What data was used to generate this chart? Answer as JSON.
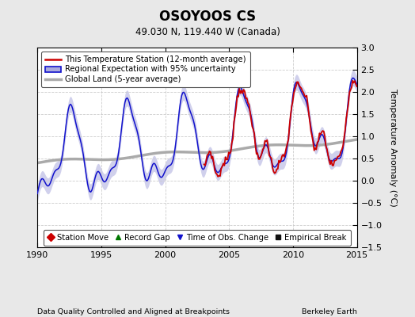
{
  "title": "OSOYOOS CS",
  "subtitle": "49.030 N, 119.440 W (Canada)",
  "xlabel_bottom": "Data Quality Controlled and Aligned at Breakpoints",
  "xlabel_right": "Berkeley Earth",
  "ylabel": "Temperature Anomaly (°C)",
  "xlim": [
    1990,
    2015
  ],
  "ylim": [
    -1.5,
    3.0
  ],
  "yticks": [
    -1.5,
    -1.0,
    -0.5,
    0.0,
    0.5,
    1.0,
    1.5,
    2.0,
    2.5,
    3.0
  ],
  "xticks": [
    1990,
    1995,
    2000,
    2005,
    2010,
    2015
  ],
  "station_color": "#cc0000",
  "regional_color": "#1111cc",
  "regional_fill_color": "#aaaadd",
  "global_color": "#aaaaaa",
  "bg_color": "#e8e8e8",
  "plot_bg": "#ffffff",
  "legend_items": [
    "This Temperature Station (12-month average)",
    "Regional Expectation with 95% uncertainty",
    "Global Land (5-year average)"
  ],
  "marker_legend": [
    {
      "marker": "D",
      "color": "#cc0000",
      "label": "Station Move"
    },
    {
      "marker": "^",
      "color": "#007700",
      "label": "Record Gap"
    },
    {
      "marker": "v",
      "color": "#1111cc",
      "label": "Time of Obs. Change"
    },
    {
      "marker": "s",
      "color": "#111111",
      "label": "Empirical Break"
    }
  ]
}
